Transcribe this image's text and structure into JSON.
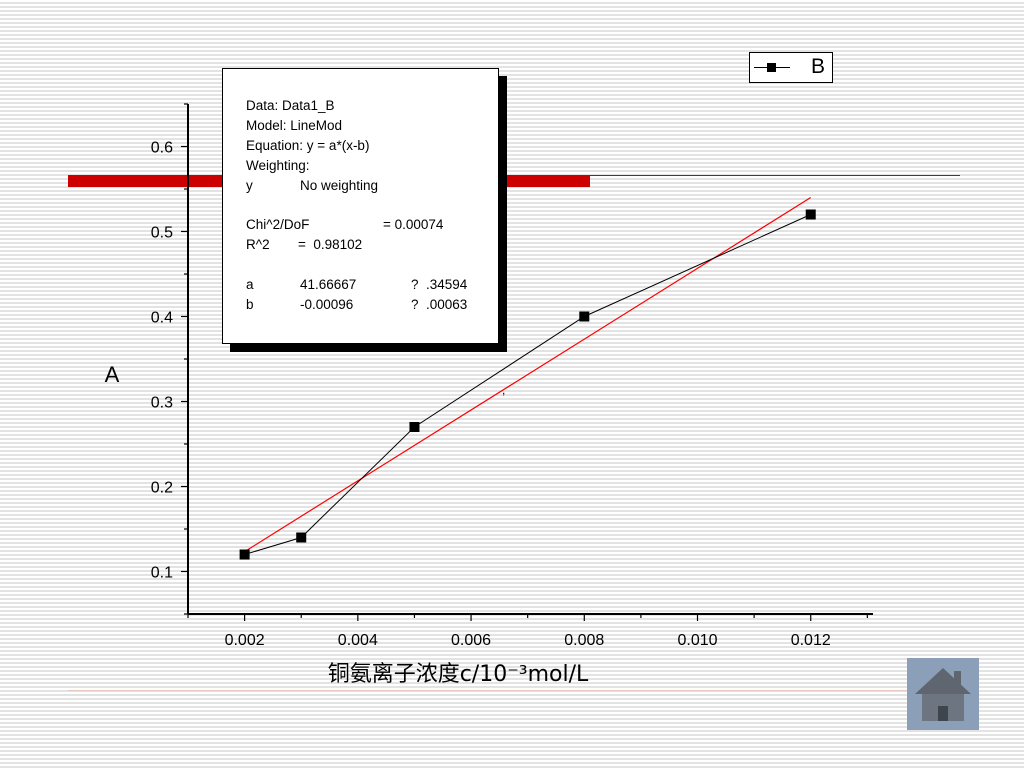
{
  "chart_data": {
    "type": "scatter",
    "xlabel": "铜氨离子浓度c/10⁻³mol/L",
    "ylabel": "A",
    "x_ticks": [
      "0.002",
      "0.004",
      "0.006",
      "0.008",
      "0.010",
      "0.012"
    ],
    "y_ticks": [
      "0.1",
      "0.2",
      "0.3",
      "0.4",
      "0.5",
      "0.6"
    ],
    "xlim": [
      0.001,
      0.0131
    ],
    "ylim": [
      0.05,
      0.65
    ],
    "series": [
      {
        "name": "B",
        "x": [
          0.002,
          0.003,
          0.005,
          0.008,
          0.012
        ],
        "y": [
          0.12,
          0.14,
          0.27,
          0.4,
          0.52
        ],
        "color": "#000000",
        "marker": "square"
      }
    ],
    "fit": {
      "color": "#ff0000",
      "a": 41.66667,
      "b": -0.00096,
      "x_range": [
        0.002,
        0.012
      ]
    },
    "legend_placement": "top-right",
    "grid": false
  },
  "fit_box": {
    "data": "Data: Data1_B",
    "model": "Model: LineMod",
    "equation": "Equation: y = a*(x-b)",
    "weighting": "Weighting:",
    "y_label": "y",
    "y_value": "No weighting",
    "chi_label": "Chi^2/DoF",
    "chi_value": "= 0.00074",
    "r_label": "R^2",
    "r_value": "=  0.98102",
    "a_name": "a",
    "a_value": "41.66667",
    "a_err": "?  .34594",
    "b_name": "b",
    "b_value": "-0.00096",
    "b_err": "?  .00063"
  },
  "legend": {
    "label": "B"
  },
  "colors": {
    "accent_red": "#cc0000",
    "fit_red": "#ff0000",
    "home_button": "#8b9fb8"
  },
  "home_button": {
    "icon": "home-icon"
  }
}
